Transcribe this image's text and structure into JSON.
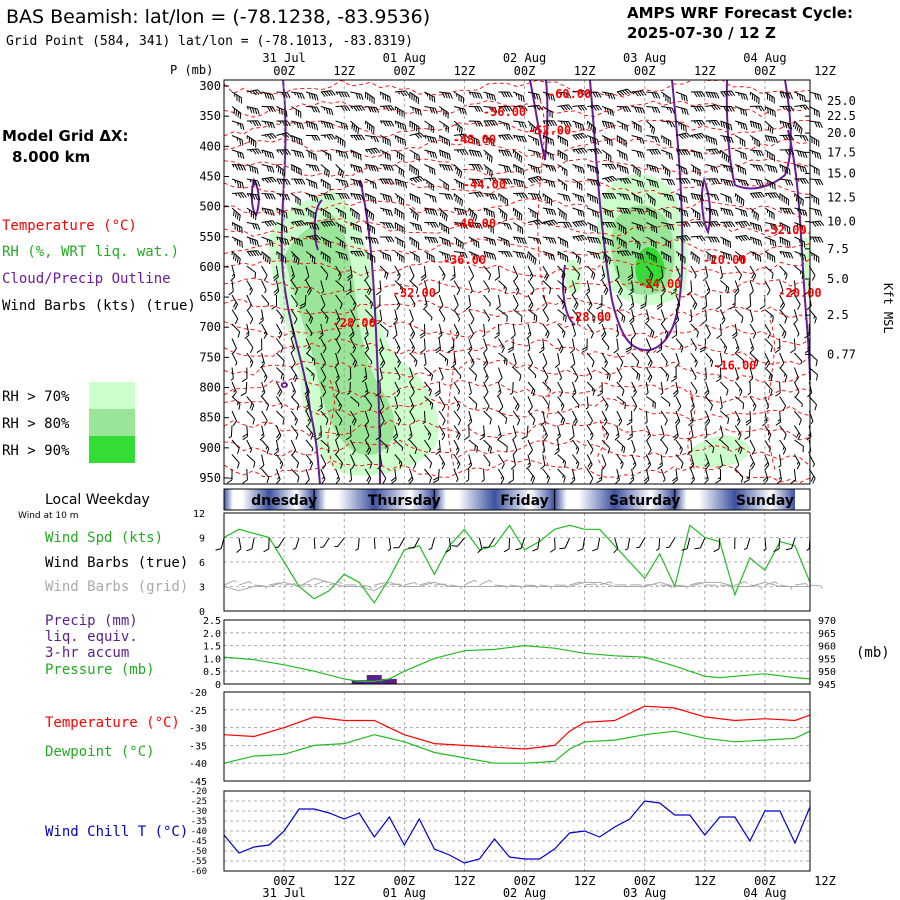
{
  "header": {
    "title": "BAS Beamish:  lat/lon = (-78.1238, -83.9536)",
    "grid_point": "Grid Point (584, 341) lat/lon = (-78.1013, -83.8319)",
    "cycle_line1": "AMPS WRF Forecast Cycle:",
    "cycle_line2": "2025-07-30 / 12  Z"
  },
  "time_axis": {
    "ticks": [
      "00Z",
      "12Z",
      "00Z",
      "12Z",
      "00Z",
      "12Z",
      "00Z",
      "12Z",
      "00Z",
      "12Z"
    ],
    "date_labels": [
      {
        "hour": 12,
        "label": "31 Jul"
      },
      {
        "hour": 36,
        "label": "01 Aug"
      },
      {
        "hour": 60,
        "label": "02 Aug"
      },
      {
        "hour": 84,
        "label": "03 Aug"
      },
      {
        "hour": 108,
        "label": "04 Aug"
      }
    ],
    "hour_range": [
      0,
      117
    ]
  },
  "left_labels": {
    "model_grid": "Model Grid ΔX:",
    "grid_dx": "8.000 km",
    "temperature": "Temperature (°C)",
    "rh": "RH (%, WRT liq. wat.)",
    "cloud": "Cloud/Precip Outline",
    "wind": "Wind Barbs (kts) (true)",
    "rh70": "RH > 70%",
    "rh80": "RH > 80%",
    "rh90": "RH > 90%"
  },
  "colors": {
    "temperature": "#ff0000",
    "rh70": "#ccffcc",
    "rh80": "#99e699",
    "rh90": "#33dd33",
    "cloud": "#6a1b9a",
    "wind_speed": "#22bb22",
    "wind_grid": "#aaaaaa",
    "pressure": "#22bb22",
    "precip": "#5b1f8c",
    "dewpoint": "#22bb22",
    "wind_chill": "#0000cc",
    "weekday_band": "#3d52a0"
  },
  "chart_data": [
    {
      "type": "heatmap",
      "name": "cross-section",
      "y_label": "P (mb)",
      "y_ticks": [
        "300",
        "350",
        "400",
        "450",
        "500",
        "550",
        "600",
        "650",
        "700",
        "750",
        "800",
        "850",
        "900",
        "950"
      ],
      "ylim": [
        960,
        290
      ],
      "right_axis_label": "Kft MSL",
      "right_ticks": [
        {
          "p": 325,
          "label": "25.0"
        },
        {
          "p": 350,
          "label": "22.5"
        },
        {
          "p": 378,
          "label": "20.0"
        },
        {
          "p": 410,
          "label": "17.5"
        },
        {
          "p": 445,
          "label": "15.0"
        },
        {
          "p": 485,
          "label": "12.5"
        },
        {
          "p": 525,
          "label": "10.0"
        },
        {
          "p": 570,
          "label": "7.5"
        },
        {
          "p": 620,
          "label": "5.0"
        },
        {
          "p": 680,
          "label": "2.5"
        },
        {
          "p": 745,
          "label": "0.77"
        }
      ],
      "temperature_labels": [
        {
          "hour": 69,
          "p": 320,
          "label": "-60.00"
        },
        {
          "hour": 56,
          "p": 350,
          "label": "-56.00"
        },
        {
          "hour": 65,
          "p": 380,
          "label": "-52.00"
        },
        {
          "hour": 50,
          "p": 395,
          "label": "-48.00"
        },
        {
          "hour": 52,
          "p": 470,
          "label": "-44.00"
        },
        {
          "hour": 50,
          "p": 535,
          "label": "-40.00"
        },
        {
          "hour": 48,
          "p": 595,
          "label": "-36.00"
        },
        {
          "hour": 38,
          "p": 650,
          "label": "-32.00"
        },
        {
          "hour": 26,
          "p": 700,
          "label": "-28.00"
        },
        {
          "hour": 73,
          "p": 690,
          "label": "-28.00"
        },
        {
          "hour": 87,
          "p": 635,
          "label": "-24.00"
        },
        {
          "hour": 100,
          "p": 595,
          "label": "-20.00"
        },
        {
          "hour": 115,
          "p": 650,
          "label": "-20.00"
        },
        {
          "hour": 112,
          "p": 545,
          "label": "-32.00"
        },
        {
          "hour": 102,
          "p": 770,
          "label": "-16.00"
        }
      ]
    },
    {
      "type": "line",
      "name": "wind",
      "weekday_labels": [
        {
          "hour": 6,
          "label": "dnesday"
        },
        {
          "hour": 30,
          "label": "Thursday"
        },
        {
          "hour": 54,
          "label": "Friday"
        },
        {
          "hour": 78,
          "label": "Saturday"
        },
        {
          "hour": 102,
          "label": "Sunday"
        }
      ],
      "local_weekday": "Local Weekday",
      "wind_at": "Wind at 10 m",
      "labels": [
        "Wind Spd (kts)",
        "Wind Barbs (true)",
        "Wind Barbs (grid)"
      ],
      "y_ticks": [
        "0",
        "3",
        "6",
        "9",
        "12"
      ],
      "ylim": [
        0,
        12
      ],
      "x": [
        0,
        3,
        6,
        9,
        12,
        15,
        18,
        21,
        24,
        27,
        30,
        33,
        36,
        39,
        42,
        45,
        48,
        51,
        54,
        57,
        60,
        63,
        66,
        69,
        72,
        75,
        78,
        81,
        84,
        87,
        90,
        93,
        96,
        99,
        102,
        105,
        108,
        111,
        114,
        117
      ],
      "speed": [
        9,
        10,
        9.5,
        9,
        6,
        3,
        1.5,
        2.5,
        4.5,
        3.5,
        1,
        4,
        7.5,
        8,
        4.5,
        8,
        10,
        7.5,
        8,
        10.5,
        7.5,
        8.5,
        10,
        10.5,
        10,
        10,
        8,
        6,
        4,
        7,
        3,
        10.5,
        9,
        8.5,
        2,
        6.5,
        5,
        8.5,
        8,
        3.5
      ],
      "grid_speed": [
        3,
        2.5,
        3,
        3,
        3.5,
        3,
        4,
        3.5,
        3,
        3,
        2.5,
        3.5,
        3,
        3,
        3.5,
        3,
        3,
        3,
        3,
        3,
        3,
        3,
        3,
        3,
        3.5,
        3.5,
        3,
        3,
        3,
        3.5,
        3,
        3,
        3.5,
        3.5,
        3,
        3,
        3.5,
        3,
        3,
        3
      ]
    },
    {
      "type": "line",
      "name": "precip-pressure",
      "labels": [
        "Precip (mm)",
        "liq. equiv.",
        "3-hr accum",
        "Pressure (mb)"
      ],
      "left_ticks": [
        "0",
        "0.5",
        "1.0",
        "1.5",
        "2.0",
        "2.5"
      ],
      "ylim_left": [
        0,
        2.5
      ],
      "right_ticks": [
        "945",
        "950",
        "955",
        "960",
        "965",
        "970"
      ],
      "ylim_right": [
        945,
        970
      ],
      "right_unit": "(mb)",
      "x": [
        0,
        6,
        12,
        18,
        24,
        27,
        30,
        33,
        36,
        42,
        48,
        54,
        60,
        66,
        72,
        78,
        84,
        90,
        96,
        99,
        102,
        108,
        114,
        117
      ],
      "pressure": [
        955.5,
        954.5,
        952.5,
        950,
        947,
        946,
        946,
        947,
        950,
        955,
        958,
        958.5,
        960,
        959,
        957,
        956,
        955.5,
        952,
        948,
        947.5,
        948,
        949,
        947.5,
        947
      ],
      "precip": [
        {
          "hour": 27,
          "value": 0.15
        },
        {
          "hour": 30,
          "value": 0.35
        },
        {
          "hour": 33,
          "value": 0.2
        }
      ]
    },
    {
      "type": "line",
      "name": "temperature-dewpoint",
      "labels": [
        "Temperature (°C)",
        "Dewpoint (°C)"
      ],
      "y_ticks": [
        "-20",
        "-25",
        "-30",
        "-35",
        "-40",
        "-45"
      ],
      "ylim": [
        -45,
        -20
      ],
      "x": [
        0,
        6,
        12,
        18,
        24,
        30,
        36,
        42,
        48,
        54,
        60,
        66,
        69,
        72,
        78,
        84,
        90,
        96,
        102,
        108,
        114,
        117
      ],
      "temperature": [
        -32,
        -32.5,
        -30,
        -27,
        -28,
        -28,
        -32,
        -34.5,
        -35,
        -35.5,
        -36,
        -35,
        -31,
        -28.5,
        -28,
        -24,
        -24.5,
        -27,
        -28,
        -27.5,
        -28,
        -26.5
      ],
      "dewpoint": [
        -40,
        -38,
        -37.5,
        -35,
        -34.5,
        -32,
        -34,
        -37,
        -38.5,
        -40,
        -40,
        -39.5,
        -36,
        -34,
        -33.5,
        -32,
        -31,
        -33,
        -34,
        -33.5,
        -33,
        -31
      ]
    },
    {
      "type": "line",
      "name": "wind-chill",
      "labels": [
        "Wind Chill T (°C)"
      ],
      "y_ticks": [
        "-20",
        "-25",
        "-30",
        "-35",
        "-40",
        "-45",
        "-50",
        "-55",
        "-60"
      ],
      "ylim": [
        -60,
        -20
      ],
      "x": [
        0,
        3,
        6,
        9,
        12,
        15,
        18,
        21,
        24,
        27,
        30,
        33,
        36,
        39,
        42,
        45,
        48,
        51,
        54,
        57,
        60,
        63,
        66,
        69,
        72,
        75,
        78,
        81,
        84,
        87,
        90,
        93,
        96,
        99,
        102,
        105,
        108,
        111,
        114,
        117
      ],
      "wind_chill": [
        -42,
        -51,
        -48,
        -47,
        -40,
        -29,
        -29,
        -31,
        -34,
        -31,
        -43,
        -33,
        -47,
        -34,
        -49,
        -52,
        -56,
        -54,
        -44,
        -53,
        -54,
        -54,
        -49,
        -41,
        -40,
        -43,
        -38,
        -34,
        -25,
        -26,
        -32,
        -32,
        -42,
        -33,
        -33,
        -45,
        -30,
        -30,
        -46,
        -28
      ]
    }
  ]
}
